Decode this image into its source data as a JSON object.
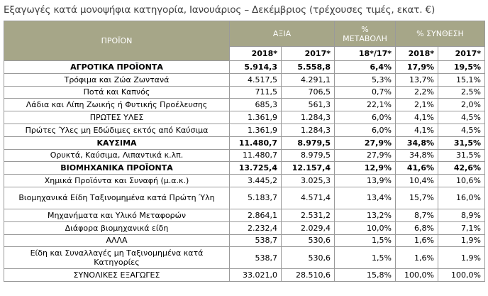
{
  "title": "Εξαγωγές κατά μονοψήφια κατηγορία, Ιανουάριος – Δεκέμβριος (τρέχουσες τιμές, εκατ. €)",
  "headers": {
    "product": "ΠΡΟΪΟΝ",
    "value": "ΑΞΙΑ",
    "change": "% ΜΕΤΑΒΟΛΗ",
    "composition": "% ΣΥΝΘΕΣΗ",
    "value_2018": "2018*",
    "value_2017": "2017*",
    "change_period": "18*/17*",
    "comp_2018": "2018*",
    "comp_2017": "2017*"
  },
  "rows": [
    {
      "name": "ΑΓΡΟΤΙΚΑ ΠΡΟΪΟΝΤΑ",
      "v2018": "5.914,3",
      "v2017": "5.558,8",
      "chg": "6,4%",
      "c2018": "17,9%",
      "c2017": "19,5%",
      "bold": true
    },
    {
      "name": "Τρόφιμα και Ζώα Ζωντανά",
      "v2018": "4.517,5",
      "v2017": "4.291,1",
      "chg": "5,3%",
      "c2018": "13,7%",
      "c2017": "15,1%",
      "bold": false
    },
    {
      "name": "Ποτά και Καπνός",
      "v2018": "711,5",
      "v2017": "706,5",
      "chg": "0,7%",
      "c2018": "2,2%",
      "c2017": "2,5%",
      "bold": false
    },
    {
      "name": "Λάδια και Λίπη Ζωικής ή Φυτικής Προέλευσης",
      "v2018": "685,3",
      "v2017": "561,3",
      "chg": "22,1%",
      "c2018": "2,1%",
      "c2017": "2,0%",
      "bold": false
    },
    {
      "name": "ΠΡΩΤΕΣ ΥΛΕΣ",
      "v2018": "1.361,9",
      "v2017": "1.284,3",
      "chg": "6,0%",
      "c2018": "4,1%",
      "c2017": "4,5%",
      "bold": false
    },
    {
      "name": "Πρώτες Ύλες μη Εδώδιμες εκτός από Καύσιμα",
      "v2018": "1.361,9",
      "v2017": "1.284,3",
      "chg": "6,0%",
      "c2018": "4,1%",
      "c2017": "4,5%",
      "bold": false
    },
    {
      "name": "ΚΑΥΣΙΜΑ",
      "v2018": "11.480,7",
      "v2017": "8.979,5",
      "chg": "27,9%",
      "c2018": "34,8%",
      "c2017": "31,5%",
      "bold": true
    },
    {
      "name": "Ορυκτά, Καύσιμα, Λιπαντικά κ.λπ.",
      "v2018": "11.480,7",
      "v2017": "8.979,5",
      "chg": "27,9%",
      "c2018": "34,8%",
      "c2017": "31,5%",
      "bold": false
    },
    {
      "name": "ΒΙΟΜΗΧΑΝΙΚΑ ΠΡΟΪΟΝΤΑ",
      "v2018": "13.725,4",
      "v2017": "12.157,4",
      "chg": "12,9%",
      "c2018": "41,6%",
      "c2017": "42,6%",
      "bold": true
    },
    {
      "name": "Χημικά Προϊόντα και Συναφή (μ.α.κ.)",
      "v2018": "3.445,2",
      "v2017": "3.025,3",
      "chg": "13,9%",
      "c2018": "10,4%",
      "c2017": "10,6%",
      "bold": false
    },
    {
      "name": "Βιομηχανικά Είδη Ταξινομημένα κατά Πρώτη Ύλη",
      "v2018": "5.183,7",
      "v2017": "4.571,4",
      "chg": "13,4%",
      "c2018": "15,7%",
      "c2017": "16,0%",
      "bold": false,
      "tall": true
    },
    {
      "name": "Μηχανήματα και Υλικό Μεταφορών",
      "v2018": "2.864,1",
      "v2017": "2.531,2",
      "chg": "13,2%",
      "c2018": "8,7%",
      "c2017": "8,9%",
      "bold": false
    },
    {
      "name": "Διάφορα βιομηχανικά είδη",
      "v2018": "2.232,4",
      "v2017": "2.029,4",
      "chg": "10,0%",
      "c2018": "6,8%",
      "c2017": "7,1%",
      "bold": false
    },
    {
      "name": "ΑΛΛΑ",
      "v2018": "538,7",
      "v2017": "530,6",
      "chg": "1,5%",
      "c2018": "1,6%",
      "c2017": "1,9%",
      "bold": false
    },
    {
      "name": "Είδη και Συναλλαγές μη Ταξινομημένα κατά Κατηγορίες",
      "v2018": "538,7",
      "v2017": "530,6",
      "chg": "1,5%",
      "c2018": "1,6%",
      "c2017": "1,9%",
      "bold": false,
      "tall": true
    },
    {
      "name": "ΣΥΝΟΛΙΚΕΣ ΕΞΑΓΩΓΕΣ",
      "v2018": "33.021,0",
      "v2017": "28.510,6",
      "chg": "15,8%",
      "c2018": "100,0%",
      "c2017": "100,0%",
      "bold": false
    }
  ],
  "colors": {
    "header_bg": "#a6a688",
    "title": "#3f3f3f"
  }
}
